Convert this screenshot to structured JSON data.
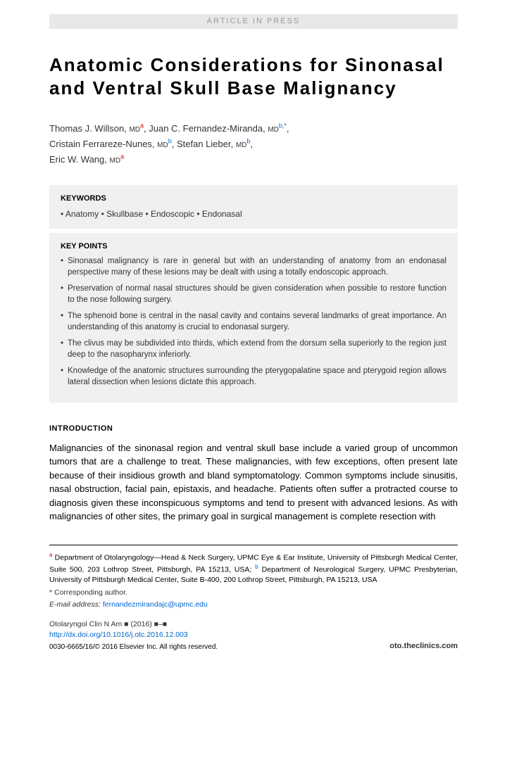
{
  "banner": "ARTICLE IN PRESS",
  "title": "Anatomic Considerations for Sinonasal and Ventral Skull Base Malignancy",
  "authors": [
    {
      "name": "Thomas J. Willson",
      "degree": "MD",
      "sup": "a",
      "sup_class": "sup-a",
      "trail": ", "
    },
    {
      "name": "Juan C. Fernandez-Miranda",
      "degree": "MD",
      "sup": "b,*",
      "sup_class": "sup-b",
      "trail": ","
    },
    {
      "name": "Cristain Ferrareze-Nunes",
      "degree": "MD",
      "sup": "b",
      "sup_class": "sup-b",
      "trail": ", "
    },
    {
      "name": "Stefan Lieber",
      "degree": "MD",
      "sup": "b",
      "sup_class": "sup-b",
      "trail": ","
    },
    {
      "name": "Eric W. Wang",
      "degree": "MD",
      "sup": "a",
      "sup_class": "sup-a",
      "trail": ""
    }
  ],
  "keywords_label": "KEYWORDS",
  "keywords": "• Anatomy • Skullbase • Endoscopic • Endonasal",
  "keypoints_label": "KEY POINTS",
  "keypoints": [
    "Sinonasal malignancy is rare in general but with an understanding of anatomy from an endonasal perspective many of these lesions may be dealt with using a totally endoscopic approach.",
    "Preservation of normal nasal structures should be given consideration when possible to restore function to the nose following surgery.",
    "The sphenoid bone is central in the nasal cavity and contains several landmarks of great importance. An understanding of this anatomy is crucial to endonasal surgery.",
    "The clivus may be subdivided into thirds, which extend from the dorsum sella superiorly to the region just deep to the nasopharynx inferiorly.",
    "Knowledge of the anatomic structures surrounding the pterygopalatine space and pterygoid region allows lateral dissection when lesions dictate this approach."
  ],
  "intro_label": "INTRODUCTION",
  "intro_text": "Malignancies of the sinonasal region and ventral skull base include a varied group of uncommon tumors that are a challenge to treat. These malignancies, with few exceptions, often present late because of their insidious growth and bland symptomatology. Common symptoms include sinusitis, nasal obstruction, facial pain, epistaxis, and headache. Patients often suffer a protracted course to diagnosis given these inconspicuous symptoms and tend to present with advanced lesions. As with malignancies of other sites, the primary goal in surgical management is complete resection with",
  "affil_a_sup": "a",
  "affil_a": " Department of Otolaryngology—Head & Neck Surgery, UPMC Eye & Ear Institute, University of Pittsburgh Medical Center, Suite 500, 203 Lothrop Street, Pittsburgh, PA 15213, USA;",
  "affil_b_sup": "b",
  "affil_b": " Department of Neurological Surgery, UPMC Presbyterian, University of Pittsburgh Medical Center, Suite B-400, 200 Lothrop Street, Pittsburgh, PA 15213, USA",
  "corresp": "* Corresponding author.",
  "email_label": "E-mail address: ",
  "email": "fernandezmirandajc@upmc.edu",
  "journal": "Otolaryngol Clin N Am ■ (2016) ■–■",
  "doi": "http://dx.doi.org/10.1016/j.otc.2016.12.003",
  "clinics": "oto.theclinics.com",
  "copyright": "0030-6665/16/© 2016 Elsevier Inc. All rights reserved.",
  "colors": {
    "banner_bg": "#e8e8e8",
    "box_bg": "#f0f0f0",
    "link": "#0066cc",
    "sup_a": "#cc0000"
  }
}
